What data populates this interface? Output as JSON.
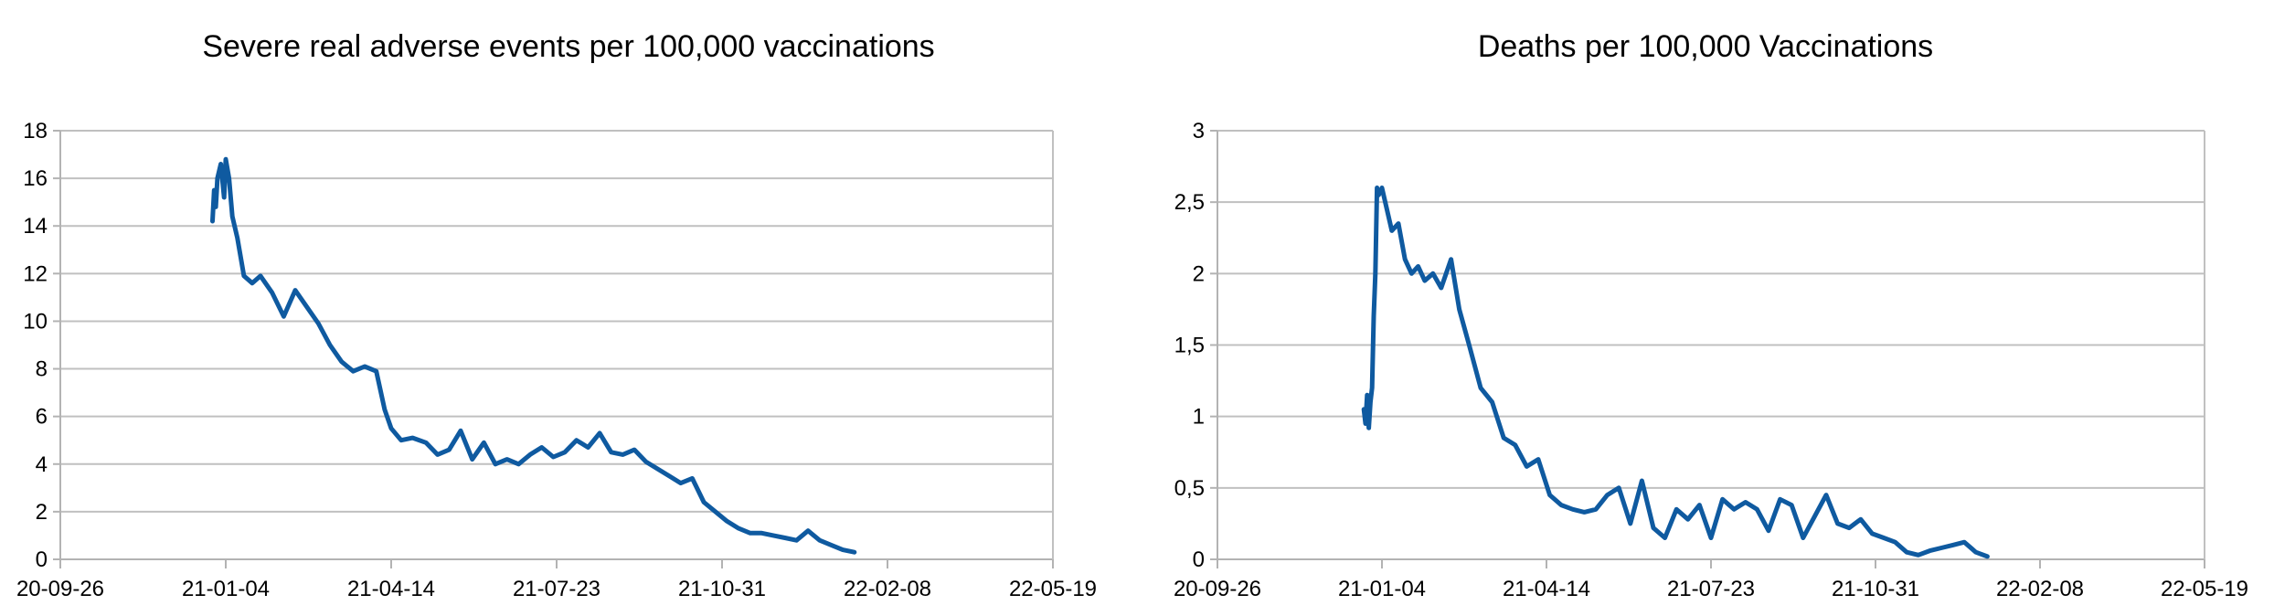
{
  "charts": [
    {
      "title": "Severe real adverse events per 100,000 vaccinations",
      "chart_id": "severe-events",
      "y_ticks": [
        "0",
        "2",
        "4",
        "6",
        "8",
        "10",
        "12",
        "14",
        "16",
        "18"
      ],
      "x_ticks": [
        "20-09-26",
        "21-01-04",
        "21-04-14",
        "21-07-23",
        "21-10-31",
        "22-02-08",
        "22-05-19"
      ],
      "color": "#0f5aa0"
    },
    {
      "title": "Deaths per 100,000 Vaccinations",
      "chart_id": "deaths",
      "y_ticks": [
        "0",
        "0,5",
        "1",
        "1,5",
        "2",
        "2,5",
        "3"
      ],
      "x_ticks": [
        "20-09-26",
        "21-01-04",
        "21-04-14",
        "21-07-23",
        "21-10-31",
        "22-02-08",
        "22-05-19"
      ],
      "color": "#0f5aa0"
    }
  ],
  "chart_data": [
    {
      "type": "line",
      "title": "Severe real adverse events per 100,000 vaccinations",
      "xlabel": "",
      "ylabel": "",
      "x_format": "YY-MM-DD",
      "xlim": [
        "20-09-26",
        "22-05-19"
      ],
      "ylim": [
        0,
        18
      ],
      "grid": true,
      "series": [
        {
          "x": [
            "20-12-27",
            "20-12-28",
            "20-12-29",
            "20-12-30",
            "21-01-01",
            "21-01-03",
            "21-01-04",
            "21-01-06",
            "21-01-08",
            "21-01-11",
            "21-01-15",
            "21-01-20",
            "21-01-25",
            "21-02-01",
            "21-02-08",
            "21-02-15",
            "21-02-22",
            "21-03-01",
            "21-03-08",
            "21-03-15",
            "21-03-22",
            "21-03-29",
            "21-04-05",
            "21-04-10",
            "21-04-14",
            "21-04-20",
            "21-04-27",
            "21-05-05",
            "21-05-12",
            "21-05-19",
            "21-05-26",
            "21-06-02",
            "21-06-09",
            "21-06-16",
            "21-06-23",
            "21-06-30",
            "21-07-07",
            "21-07-14",
            "21-07-21",
            "21-07-28",
            "21-08-04",
            "21-08-11",
            "21-08-18",
            "21-08-25",
            "21-09-01",
            "21-09-08",
            "21-09-15",
            "21-09-22",
            "21-09-29",
            "21-10-06",
            "21-10-13",
            "21-10-20",
            "21-10-27",
            "21-11-03",
            "21-11-10",
            "21-11-17",
            "21-11-24",
            "21-12-01",
            "21-12-08",
            "21-12-15",
            "21-12-22",
            "21-12-29",
            "22-01-05",
            "22-01-12",
            "22-01-19",
            "22-01-26",
            "22-02-02",
            "22-02-09",
            "22-02-14"
          ],
          "y": [
            14.2,
            15.5,
            14.8,
            16.0,
            16.6,
            15.2,
            16.8,
            16.0,
            14.4,
            13.5,
            11.9,
            11.6,
            11.9,
            11.2,
            10.2,
            11.3,
            10.6,
            9.9,
            9.0,
            8.3,
            7.9,
            8.1,
            7.9,
            6.3,
            5.5,
            5.0,
            5.1,
            4.9,
            4.4,
            4.6,
            5.4,
            4.2,
            4.9,
            4.0,
            4.2,
            4.0,
            4.4,
            4.7,
            4.3,
            4.5,
            5.0,
            4.7,
            5.3,
            4.5,
            4.4,
            4.6,
            4.1,
            3.8,
            3.5,
            3.2,
            3.4,
            2.4,
            2.0,
            1.6,
            1.3,
            1.1,
            1.1,
            1.0,
            0.9,
            0.8,
            1.2,
            0.8,
            0.6,
            0.4,
            0.3,
            null,
            null,
            null,
            null
          ],
          "name": ""
        }
      ]
    },
    {
      "type": "line",
      "title": "Deaths per 100,000 Vaccinations",
      "xlabel": "",
      "ylabel": "",
      "x_format": "YY-MM-DD",
      "xlim": [
        "20-09-26",
        "22-05-19"
      ],
      "ylim": [
        0,
        3
      ],
      "grid": true,
      "series": [
        {
          "x": [
            "20-12-24",
            "20-12-25",
            "20-12-26",
            "20-12-27",
            "20-12-28",
            "20-12-29",
            "20-12-30",
            "20-12-31",
            "21-01-01",
            "21-01-02",
            "21-01-04",
            "21-01-06",
            "21-01-10",
            "21-01-14",
            "21-01-18",
            "21-01-22",
            "21-01-26",
            "21-01-30",
            "21-02-04",
            "21-02-09",
            "21-02-15",
            "21-02-20",
            "21-02-26",
            "21-03-05",
            "21-03-12",
            "21-03-19",
            "21-03-26",
            "21-04-02",
            "21-04-09",
            "21-04-16",
            "21-04-23",
            "21-04-30",
            "21-05-07",
            "21-05-14",
            "21-05-21",
            "21-05-28",
            "21-06-04",
            "21-06-11",
            "21-06-18",
            "21-06-25",
            "21-07-02",
            "21-07-09",
            "21-07-16",
            "21-07-23",
            "21-07-30",
            "21-08-06",
            "21-08-13",
            "21-08-20",
            "21-08-27",
            "21-09-03",
            "21-09-10",
            "21-09-17",
            "21-09-24",
            "21-10-01",
            "21-10-08",
            "21-10-15",
            "21-10-22",
            "21-10-29",
            "21-11-05",
            "21-11-12",
            "21-11-19",
            "21-11-26",
            "21-12-03",
            "21-12-10",
            "21-12-17",
            "21-12-24",
            "21-12-31",
            "22-01-07",
            "22-01-14",
            "22-01-21",
            "22-01-28",
            "22-02-04",
            "22-02-08"
          ],
          "y": [
            1.05,
            0.95,
            1.15,
            0.92,
            1.1,
            1.2,
            1.7,
            2.0,
            2.6,
            2.55,
            2.6,
            2.5,
            2.3,
            2.35,
            2.1,
            2.0,
            2.05,
            1.95,
            2.0,
            1.9,
            2.1,
            1.75,
            1.5,
            1.2,
            1.1,
            0.85,
            0.8,
            0.65,
            0.7,
            0.45,
            0.38,
            0.35,
            0.33,
            0.35,
            0.45,
            0.5,
            0.25,
            0.55,
            0.22,
            0.15,
            0.35,
            0.28,
            0.38,
            0.15,
            0.42,
            0.35,
            0.4,
            0.35,
            0.2,
            0.42,
            0.38,
            0.15,
            0.3,
            0.45,
            0.25,
            0.22,
            0.28,
            0.18,
            0.15,
            0.12,
            0.05,
            0.03,
            0.06,
            0.08,
            0.1,
            0.12,
            0.05,
            0.02,
            null,
            null,
            null,
            null,
            null
          ],
          "name": ""
        }
      ]
    }
  ]
}
